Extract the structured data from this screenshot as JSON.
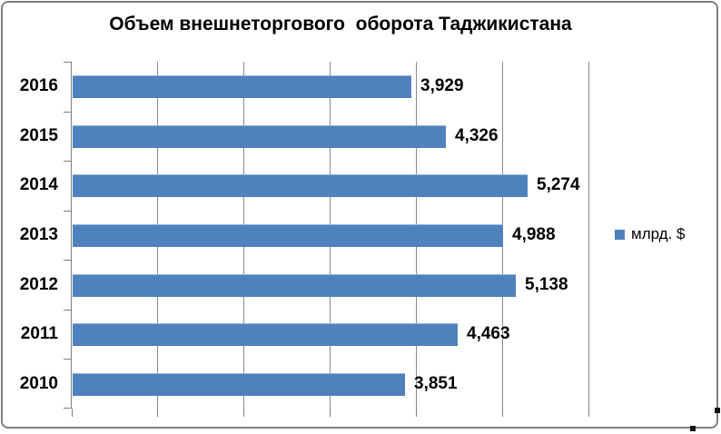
{
  "chart_data": {
    "type": "bar",
    "orientation": "horizontal",
    "title": "Объем внешнеторгового  оборота Таджикистана",
    "categories": [
      "2016",
      "2015",
      "2014",
      "2013",
      "2012",
      "2011",
      "2010"
    ],
    "values": [
      3.929,
      4.326,
      5.274,
      4.988,
      5.138,
      4.463,
      3.851
    ],
    "value_labels": [
      "3,929",
      "4,326",
      "5,274",
      "4,988",
      "5,138",
      "4,463",
      "3,851"
    ],
    "xlabel": "",
    "ylabel": "",
    "xlim": [
      0,
      6
    ],
    "gridline_interval": 1,
    "grid": true,
    "legend": {
      "label": "млрд. $",
      "position": "right"
    },
    "unit": "млрд. $",
    "bar_color": "#4f81bd",
    "bar_highlight_color": "#94b2d6"
  },
  "colors": {
    "axis": "#7f7f7f",
    "gridline": "#8a8a8a",
    "frame_border": "#7e7e7e",
    "text": "#000000",
    "background": "#ffffff"
  }
}
